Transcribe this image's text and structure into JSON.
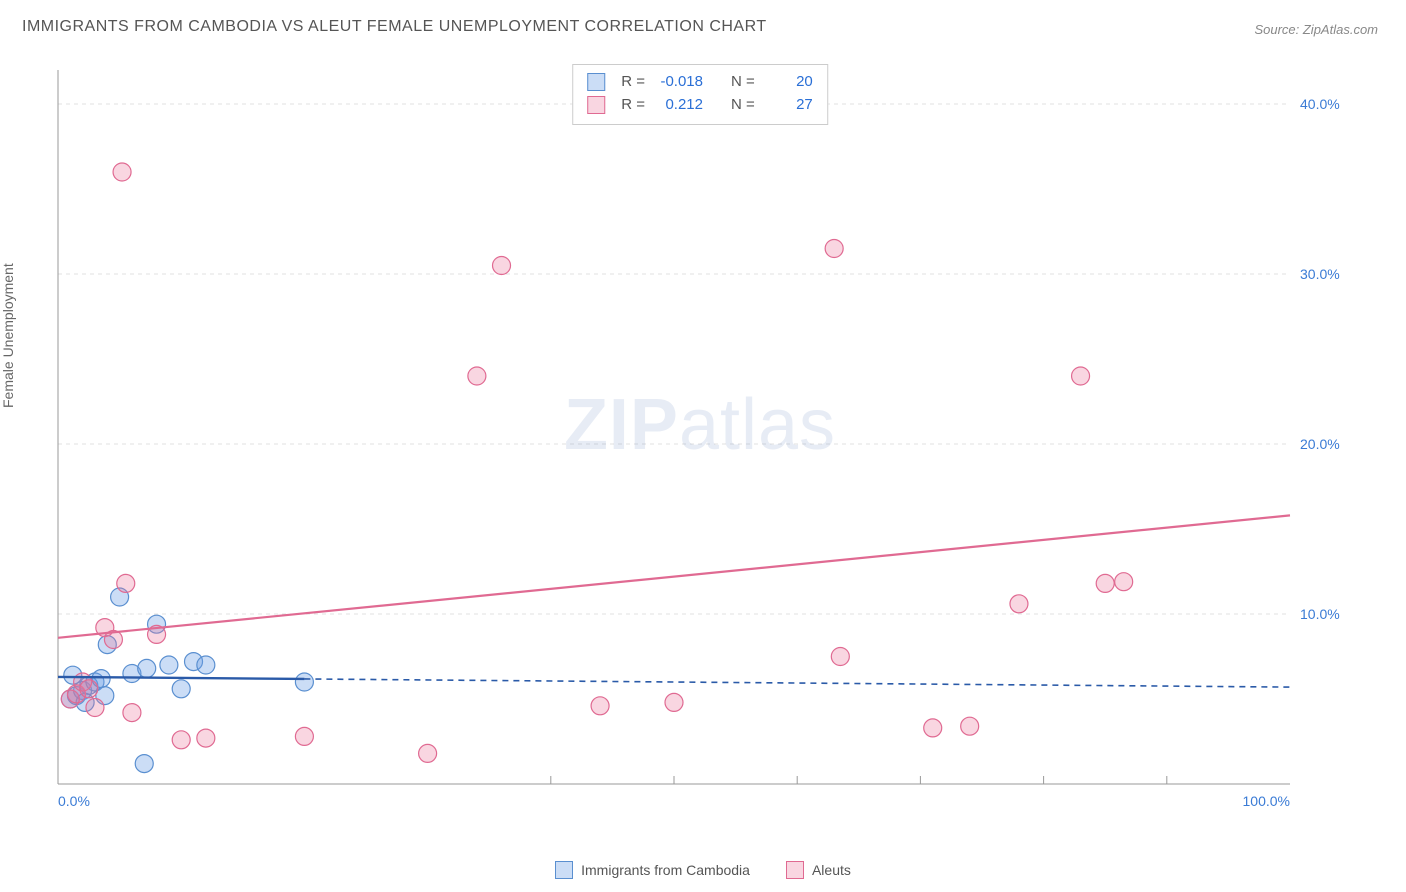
{
  "title": "IMMIGRANTS FROM CAMBODIA VS ALEUT FEMALE UNEMPLOYMENT CORRELATION CHART",
  "source": "Source: ZipAtlas.com",
  "y_axis_label": "Female Unemployment",
  "watermark_bold": "ZIP",
  "watermark_rest": "atlas",
  "chart": {
    "type": "scatter",
    "xlim": [
      0,
      100
    ],
    "ylim": [
      0,
      42
    ],
    "x_ticks": [
      0,
      100
    ],
    "x_tick_labels": [
      "0.0%",
      "100.0%"
    ],
    "x_minor_ticks": [
      40,
      50,
      60,
      70,
      80,
      90
    ],
    "y_ticks": [
      10,
      20,
      30,
      40
    ],
    "y_tick_labels": [
      "10.0%",
      "20.0%",
      "30.0%",
      "40.0%"
    ],
    "background_color": "#ffffff",
    "grid_color": "#e0e0e0",
    "axis_line_color": "#999999",
    "tick_label_color": "#3a7bd5",
    "tick_label_fontsize": 14,
    "marker_radius": 9,
    "marker_stroke_width": 1.2,
    "series": [
      {
        "name": "Immigrants from Cambodia",
        "fill": "rgba(106,159,228,0.35)",
        "stroke": "#5a8fd0",
        "R": "-0.018",
        "N": "20",
        "points": [
          [
            1.0,
            5.0
          ],
          [
            1.5,
            5.2
          ],
          [
            2.0,
            5.5
          ],
          [
            2.5,
            5.8
          ],
          [
            3.0,
            6.0
          ],
          [
            3.5,
            6.2
          ],
          [
            4.0,
            8.2
          ],
          [
            5.0,
            11.0
          ],
          [
            6.0,
            6.5
          ],
          [
            7.0,
            1.2
          ],
          [
            8.0,
            9.4
          ],
          [
            9.0,
            7.0
          ],
          [
            10.0,
            5.6
          ],
          [
            11.0,
            7.2
          ],
          [
            12.0,
            7.0
          ],
          [
            7.2,
            6.8
          ],
          [
            2.2,
            4.8
          ],
          [
            1.2,
            6.4
          ],
          [
            20.0,
            6.0
          ],
          [
            3.8,
            5.2
          ]
        ],
        "trend": {
          "y0": 6.3,
          "y1": 5.7,
          "solid_until_x": 20,
          "stroke": "#2a5aa8",
          "width": 2.4
        }
      },
      {
        "name": "Aleuts",
        "fill": "rgba(235,120,155,0.30)",
        "stroke": "#e06a92",
        "R": "0.212",
        "N": "27",
        "points": [
          [
            1.0,
            5.0
          ],
          [
            1.5,
            5.3
          ],
          [
            2.0,
            6.0
          ],
          [
            2.5,
            5.6
          ],
          [
            3.0,
            4.5
          ],
          [
            3.8,
            9.2
          ],
          [
            4.5,
            8.5
          ],
          [
            5.5,
            11.8
          ],
          [
            6.0,
            4.2
          ],
          [
            8.0,
            8.8
          ],
          [
            10.0,
            2.6
          ],
          [
            12.0,
            2.7
          ],
          [
            20.0,
            2.8
          ],
          [
            30.0,
            1.8
          ],
          [
            34.0,
            24.0
          ],
          [
            36.0,
            30.5
          ],
          [
            5.2,
            36.0
          ],
          [
            44.0,
            4.6
          ],
          [
            50.0,
            4.8
          ],
          [
            63.0,
            31.5
          ],
          [
            63.5,
            7.5
          ],
          [
            71.0,
            3.3
          ],
          [
            74.0,
            3.4
          ],
          [
            78.0,
            10.6
          ],
          [
            83.0,
            24.0
          ],
          [
            85.0,
            11.8
          ],
          [
            86.5,
            11.9
          ]
        ],
        "trend": {
          "y0": 8.6,
          "y1": 15.8,
          "solid_until_x": 100,
          "stroke": "#e06a92",
          "width": 2.2
        }
      }
    ]
  },
  "legend_bottom": [
    {
      "label": "Immigrants from Cambodia",
      "fill": "rgba(106,159,228,0.35)",
      "stroke": "#5a8fd0"
    },
    {
      "label": "Aleuts",
      "fill": "rgba(235,120,155,0.30)",
      "stroke": "#e06a92"
    }
  ],
  "stat_legend_labels": {
    "R": "R =",
    "N": "N ="
  }
}
